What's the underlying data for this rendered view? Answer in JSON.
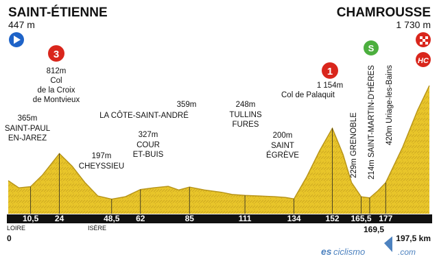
{
  "start": {
    "name": "SAINT-ÉTIENNE",
    "altitude": "447 m"
  },
  "finish": {
    "name": "CHAMROUSSE",
    "altitude": "1 730 m"
  },
  "colors": {
    "terrain": "#e8c52a",
    "terrain_dark": "#b8951a",
    "sky_line": "#333333",
    "climb_red": "#d9261c",
    "sprint_green": "#4caf3e",
    "start_blue": "#1e63c8"
  },
  "km_start_label": "0",
  "total_distance": "197,5 km",
  "regions": [
    "LOIRE",
    "ISÈRE"
  ],
  "climbs": [
    {
      "category": "3",
      "altitude": "812m",
      "name": [
        "Col",
        "de la Croix",
        "de Montvieux"
      ]
    },
    {
      "category": "1",
      "altitude": "1 154m",
      "name": [
        "Col de Palaquit"
      ]
    },
    {
      "category": "HC",
      "name": []
    }
  ],
  "sprint": {
    "label": "S",
    "altitude": "214m",
    "name": "SAINT-MARTIN-D'HÈRES"
  },
  "waypoints": [
    {
      "km": "10,5",
      "altitude": "365m",
      "name": [
        "SAINT-PAUL",
        "EN-JAREZ"
      ]
    },
    {
      "km": "24"
    },
    {
      "km": "48,5",
      "altitude": "197m",
      "name": [
        "CHEYSSIEU"
      ]
    },
    {
      "km": "62",
      "altitude": "327m",
      "name": [
        "COUR",
        "ET-BUIS"
      ]
    },
    {
      "km": "85",
      "altitude": "359m",
      "name": [
        "LA CÔTE-SAINT-ANDRÉ"
      ]
    },
    {
      "km": "111",
      "altitude": "248m",
      "name": [
        "TULLINS",
        "FURES"
      ]
    },
    {
      "km": "134",
      "altitude": "200m",
      "name": [
        "SAINT",
        "ÉGRÈVE"
      ]
    },
    {
      "km": "152"
    },
    {
      "km": "165,5",
      "altitude": "229m",
      "name": [
        "GRENOBLE"
      ]
    },
    {
      "km": "169,5"
    },
    {
      "km": "177",
      "altitude": "420m",
      "name": [
        "Uriage-les-Bains"
      ]
    }
  ],
  "watermark": {
    "left": "es",
    "middle": "ciclismo",
    "right": ".com"
  },
  "chart_data": {
    "type": "area",
    "title": "",
    "xlabel": "",
    "ylabel": "",
    "x_unit": "km",
    "y_unit": "m",
    "x": [
      0,
      5,
      10.5,
      16,
      24,
      30,
      36,
      42,
      48.5,
      55,
      62,
      68,
      75,
      80,
      85,
      92,
      100,
      105,
      111,
      118,
      125,
      130,
      134,
      140,
      146,
      152,
      157,
      161,
      165.5,
      169.5,
      173,
      177,
      185,
      192,
      197.5
    ],
    "y": [
      447,
      350,
      365,
      520,
      812,
      640,
      420,
      240,
      197,
      230,
      327,
      350,
      370,
      320,
      359,
      320,
      290,
      260,
      248,
      240,
      230,
      220,
      200,
      500,
      850,
      1154,
      800,
      420,
      229,
      214,
      300,
      420,
      900,
      1400,
      1730
    ],
    "xlim": [
      0,
      197.5
    ],
    "ylim": [
      0,
      1900
    ]
  }
}
